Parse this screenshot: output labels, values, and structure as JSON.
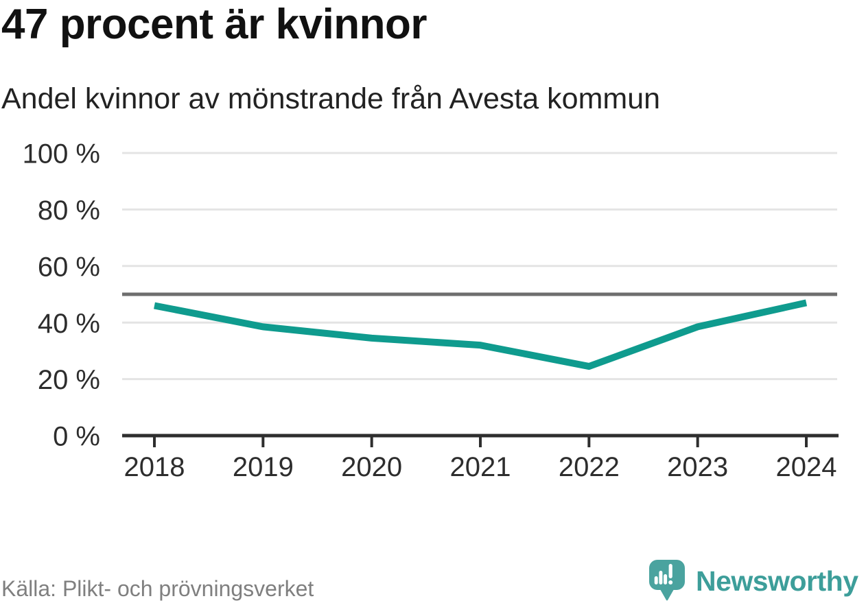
{
  "header": {
    "title": "47 procent är kvinnor",
    "subtitle": "Andel kvinnor av mönstrande från Avesta kommun"
  },
  "footer": {
    "source": "Källa: Plikt- och prövningsverket",
    "brand": "Newsworthy"
  },
  "colors": {
    "line": "#0f9b8e",
    "grid": "#e4e4e4",
    "reference_line": "#6e6e6e",
    "axis": "#2e2e2e",
    "tick_label": "#2d2d2d",
    "title_text": "#111111",
    "muted_text": "#7f7f7f",
    "brand_teal": "#4aa39f",
    "brand_text": "#3d9e9a",
    "background": "#ffffff"
  },
  "chart_data": {
    "type": "line",
    "title": "47 procent är kvinnor",
    "subtitle": "Andel kvinnor av mönstrande från Avesta kommun",
    "categories": [
      "2018",
      "2019",
      "2020",
      "2021",
      "2022",
      "2023",
      "2024"
    ],
    "series": [
      {
        "name": "Andel kvinnor av mönstrande",
        "values": [
          46,
          38.5,
          34.5,
          32,
          24.5,
          38.5,
          47
        ]
      }
    ],
    "unit": "%",
    "ylim": [
      0,
      100
    ],
    "yticks": [
      {
        "value": 0,
        "label": "0 %"
      },
      {
        "value": 20,
        "label": "20 %"
      },
      {
        "value": 40,
        "label": "40 %"
      },
      {
        "value": 60,
        "label": "60 %"
      },
      {
        "value": 80,
        "label": "80 %"
      },
      {
        "value": 100,
        "label": "100 %"
      }
    ],
    "reference_line": {
      "value": 50
    },
    "grid": "horizontal",
    "legend": "none"
  }
}
